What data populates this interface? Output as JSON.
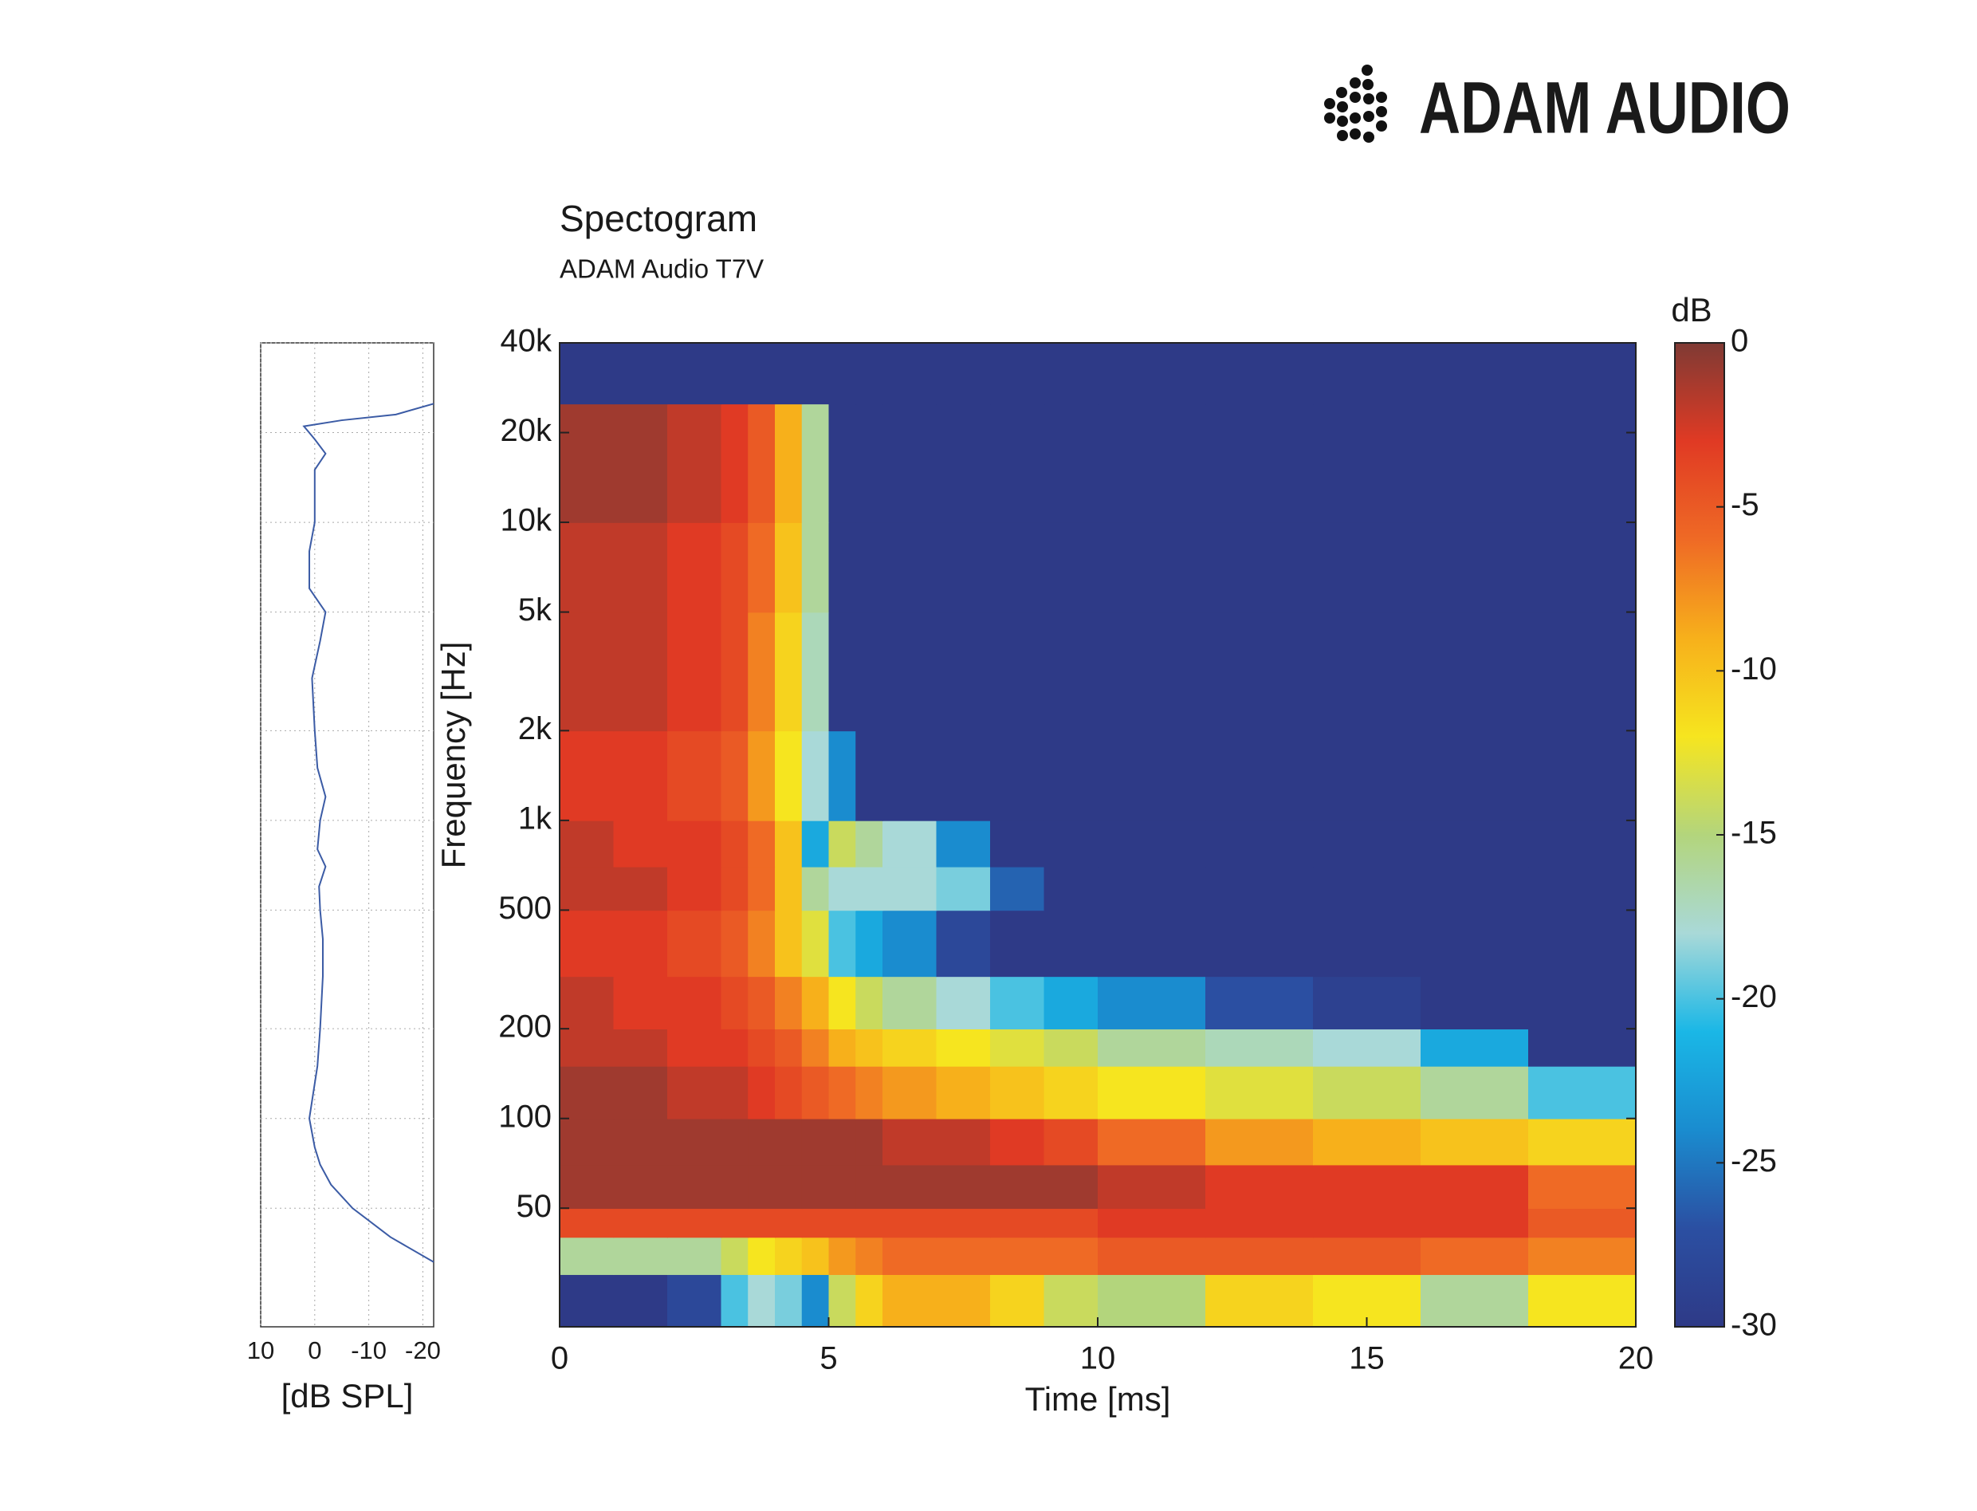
{
  "header": {
    "logo": "ADAM AUDIO"
  },
  "chart_data": [
    {
      "type": "line",
      "x_label": "[dB SPL]",
      "xlim": [
        10,
        -22
      ],
      "xticks": [
        10,
        0,
        -10,
        -20
      ],
      "ylim": [
        20,
        40000
      ],
      "log_y": true,
      "grid": true,
      "color": "#3b5ba5",
      "frequencies": [
        33,
        40,
        50,
        60,
        70,
        80,
        100,
        150,
        200,
        300,
        400,
        500,
        600,
        700,
        800,
        1000,
        1200,
        1500,
        2000,
        3000,
        4000,
        5000,
        6000,
        8000,
        10000,
        15000,
        17000,
        19000,
        21000,
        22000,
        23000,
        25000
      ],
      "values": [
        -22,
        -14,
        -7,
        -3,
        -1,
        0,
        1,
        -0.5,
        -1,
        -1.5,
        -1.5,
        -1,
        -0.8,
        -2,
        -0.5,
        -1,
        -2,
        -0.5,
        0,
        0.5,
        -1,
        -2,
        1,
        1,
        0,
        0,
        -2,
        0,
        2,
        -5,
        -15,
        -22
      ]
    },
    {
      "type": "heatmap",
      "title": "Spectogram",
      "subtitle": "ADAM Audio T7V",
      "x_label": "Time [ms]",
      "y_label": "Frequency [Hz]",
      "xlim": [
        0,
        20
      ],
      "xticks": [
        0,
        5,
        10,
        15,
        20
      ],
      "ylim": [
        20,
        40000
      ],
      "log_y": true,
      "yticks": [
        {
          "value": 40000,
          "label": "40k"
        },
        {
          "value": 20000,
          "label": "20k"
        },
        {
          "value": 10000,
          "label": "10k"
        },
        {
          "value": 5000,
          "label": "5k"
        },
        {
          "value": 2000,
          "label": "2k"
        },
        {
          "value": 1000,
          "label": "1k"
        },
        500,
        200,
        100,
        50
      ],
      "time_edges": [
        0,
        1,
        2,
        3,
        3.5,
        4,
        4.5,
        5,
        5.5,
        6,
        7,
        8,
        9,
        10,
        12,
        14,
        16,
        18,
        20
      ],
      "frequency_edges": [
        20,
        30,
        40,
        50,
        70,
        100,
        150,
        200,
        300,
        500,
        700,
        1000,
        2000,
        5000,
        10000,
        25000,
        40000
      ],
      "z": [
        [
          -30,
          -30,
          -28,
          -20,
          -18,
          -19,
          -24,
          -14,
          -11,
          -9,
          -9,
          -11,
          -14,
          -15,
          -11,
          -12,
          -16,
          -12
        ],
        [
          -16,
          -16,
          -16,
          -14,
          -12,
          -11,
          -10,
          -8,
          -7,
          -6,
          -6,
          -6,
          -6,
          -5,
          -5,
          -5,
          -6,
          -7
        ],
        [
          -4,
          -4,
          -4,
          -4,
          -4,
          -4,
          -4,
          -4,
          -4,
          -4,
          -4,
          -4,
          -4,
          -3,
          -3,
          -3,
          -3,
          -5
        ],
        [
          -1,
          -1,
          -1,
          -1,
          -1,
          -1,
          -1,
          -1,
          -1,
          -1,
          -1,
          -1,
          -1,
          -2,
          -3,
          -3,
          -3,
          -6
        ],
        [
          -1,
          -1,
          -1,
          -1,
          -1,
          -1,
          -1,
          -1,
          -1,
          -2,
          -2,
          -3,
          -4,
          -6,
          -8,
          -9,
          -10,
          -11
        ],
        [
          -1,
          -1,
          -2,
          -2,
          -3,
          -4,
          -5,
          -6,
          -7,
          -8,
          -9,
          -10,
          -11,
          -12,
          -13,
          -14,
          -16,
          -20
        ],
        [
          -2,
          -2,
          -3,
          -3,
          -4,
          -5,
          -7,
          -9,
          -10,
          -11,
          -12,
          -13,
          -14,
          -16,
          -17,
          -18,
          -22,
          -30
        ],
        [
          -2,
          -3,
          -3,
          -4,
          -5,
          -7,
          -9,
          -12,
          -14,
          -16,
          -18,
          -20,
          -22,
          -24,
          -27,
          -29,
          -30,
          -30
        ],
        [
          -3,
          -3,
          -4,
          -5,
          -7,
          -10,
          -13,
          -20,
          -22,
          -24,
          -28,
          -30,
          -30,
          -30,
          -30,
          -30,
          -30,
          -30
        ],
        [
          -2,
          -2,
          -3,
          -4,
          -6,
          -10,
          -16,
          -18,
          -18,
          -18,
          -19,
          -26,
          -30,
          -30,
          -30,
          -30,
          -30,
          -30
        ],
        [
          -2,
          -3,
          -3,
          -4,
          -6,
          -10,
          -22,
          -14,
          -16,
          -18,
          -24,
          -30,
          -30,
          -30,
          -30,
          -30,
          -30,
          -30
        ],
        [
          -3,
          -3,
          -4,
          -5,
          -8,
          -12,
          -18,
          -24,
          -30,
          -30,
          -30,
          -30,
          -30,
          -30,
          -30,
          -30,
          -30,
          -30
        ],
        [
          -2,
          -2,
          -3,
          -4,
          -7,
          -11,
          -17,
          -30,
          -30,
          -30,
          -30,
          -30,
          -30,
          -30,
          -30,
          -30,
          -30,
          -30
        ],
        [
          -2,
          -2,
          -3,
          -4,
          -6,
          -10,
          -16,
          -30,
          -30,
          -30,
          -30,
          -30,
          -30,
          -30,
          -30,
          -30,
          -30,
          -30
        ],
        [
          -1,
          -1,
          -2,
          -3,
          -5,
          -9,
          -16,
          -30,
          -30,
          -30,
          -30,
          -30,
          -30,
          -30,
          -30,
          -30,
          -30,
          -30
        ],
        [
          -30,
          -30,
          -30,
          -30,
          -30,
          -30,
          -30,
          -30,
          -30,
          -30,
          -30,
          -30,
          -30,
          -30,
          -30,
          -30,
          -30,
          -30
        ]
      ],
      "colorbar": {
        "label": "dB",
        "zlim": [
          -30,
          0
        ],
        "ticks": [
          0,
          -5,
          -10,
          -15,
          -20,
          -25,
          -30
        ],
        "colormap": [
          "#2e3a87",
          "#2b4fa2",
          "#1a8ccf",
          "#1ab7e6",
          "#a9d9d8",
          "#b3d57c",
          "#f6e51f",
          "#f7b01b",
          "#ef6a25",
          "#e03a24",
          "#7f3a34"
        ]
      }
    }
  ]
}
